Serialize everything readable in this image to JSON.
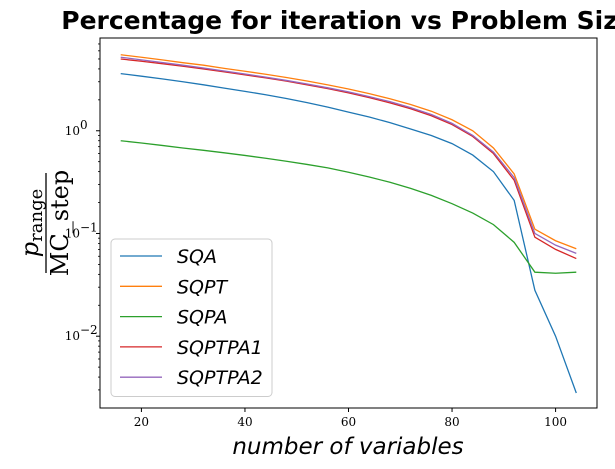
{
  "chart_data": {
    "type": "line",
    "title": "Percentage for iteration vs Problem Size",
    "xlabel": "number of variables",
    "ylabel_numerator": "p",
    "ylabel_numerator_sub": "range",
    "ylabel_denominator": "MC_step",
    "xlim": [
      12,
      108
    ],
    "ylim": [
      0.002,
      8.0
    ],
    "yscale": "log",
    "xticks": [
      20,
      40,
      60,
      80,
      100
    ],
    "xtick_labels": [
      "20",
      "40",
      "60",
      "80",
      "100"
    ],
    "yticks": [
      0.01,
      0.1,
      1
    ],
    "ytick_labels": [
      "10",
      "10",
      "10"
    ],
    "ytick_exponents": [
      "−2",
      "−1",
      "0"
    ],
    "grid": false,
    "legend_position": "lower-left",
    "x": [
      16,
      20,
      24,
      28,
      32,
      36,
      40,
      44,
      48,
      52,
      56,
      60,
      64,
      68,
      72,
      76,
      80,
      84,
      88,
      92,
      96,
      100,
      104
    ],
    "series": [
      {
        "name": "SQA",
        "color": "#1f77b4",
        "values": [
          3.6,
          3.4,
          3.2,
          3.0,
          2.8,
          2.6,
          2.42,
          2.24,
          2.06,
          1.88,
          1.7,
          1.52,
          1.36,
          1.2,
          1.04,
          0.9,
          0.75,
          0.58,
          0.4,
          0.21,
          0.028,
          0.01,
          0.0028
        ]
      },
      {
        "name": "SQPT",
        "color": "#ff7f0e",
        "values": [
          5.5,
          5.2,
          4.9,
          4.6,
          4.35,
          4.05,
          3.8,
          3.55,
          3.3,
          3.05,
          2.8,
          2.55,
          2.3,
          2.05,
          1.8,
          1.55,
          1.28,
          1.0,
          0.68,
          0.38,
          0.11,
          0.085,
          0.071
        ]
      },
      {
        "name": "SQPA",
        "color": "#2ca02c",
        "values": [
          0.8,
          0.76,
          0.72,
          0.68,
          0.645,
          0.61,
          0.575,
          0.54,
          0.505,
          0.47,
          0.435,
          0.395,
          0.355,
          0.315,
          0.275,
          0.235,
          0.195,
          0.158,
          0.122,
          0.082,
          0.042,
          0.041,
          0.042
        ]
      },
      {
        "name": "SQPTPA1",
        "color": "#d62728",
        "values": [
          5.0,
          4.75,
          4.5,
          4.25,
          4.0,
          3.75,
          3.5,
          3.27,
          3.04,
          2.8,
          2.57,
          2.34,
          2.1,
          1.87,
          1.64,
          1.4,
          1.15,
          0.88,
          0.6,
          0.33,
          0.092,
          0.07,
          0.057
        ]
      },
      {
        "name": "SQPTPA2",
        "color": "#9467bd",
        "values": [
          5.2,
          4.9,
          4.62,
          4.35,
          4.08,
          3.82,
          3.57,
          3.33,
          3.09,
          2.85,
          2.62,
          2.39,
          2.15,
          1.92,
          1.68,
          1.44,
          1.18,
          0.9,
          0.62,
          0.35,
          0.1,
          0.077,
          0.064
        ]
      }
    ]
  }
}
